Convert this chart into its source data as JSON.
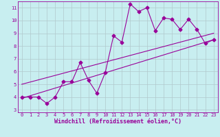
{
  "title": "",
  "xlabel": "Windchill (Refroidissement éolien,°C)",
  "ylabel": "",
  "bg_color": "#c8eef0",
  "line_color": "#990099",
  "grid_color": "#b0c8cc",
  "x_data": [
    0,
    1,
    2,
    3,
    4,
    5,
    6,
    7,
    8,
    9,
    10,
    11,
    12,
    13,
    14,
    15,
    16,
    17,
    18,
    19,
    20,
    21,
    22,
    23
  ],
  "y_zigzag": [
    4.0,
    4.0,
    4.0,
    3.5,
    4.0,
    5.2,
    5.2,
    6.7,
    5.3,
    4.3,
    5.9,
    8.8,
    8.3,
    11.3,
    10.7,
    11.0,
    9.2,
    10.2,
    10.1,
    9.3,
    10.1,
    9.3,
    8.2,
    8.5
  ],
  "ylim": [
    2.8,
    11.5
  ],
  "xlim": [
    -0.5,
    23.5
  ],
  "yticks": [
    3,
    4,
    5,
    6,
    7,
    8,
    9,
    10,
    11
  ],
  "xticks": [
    0,
    1,
    2,
    3,
    4,
    5,
    6,
    7,
    8,
    9,
    10,
    11,
    12,
    13,
    14,
    15,
    16,
    17,
    18,
    19,
    20,
    21,
    22,
    23
  ],
  "trend1_x": [
    0,
    23
  ],
  "trend1_y": [
    3.9,
    8.5
  ],
  "trend2_x": [
    0,
    23
  ],
  "trend2_y": [
    5.0,
    9.0
  ],
  "marker": "D",
  "markersize": 2.5,
  "linewidth": 0.8,
  "tick_fontsize": 5.0,
  "label_fontsize": 6.0
}
